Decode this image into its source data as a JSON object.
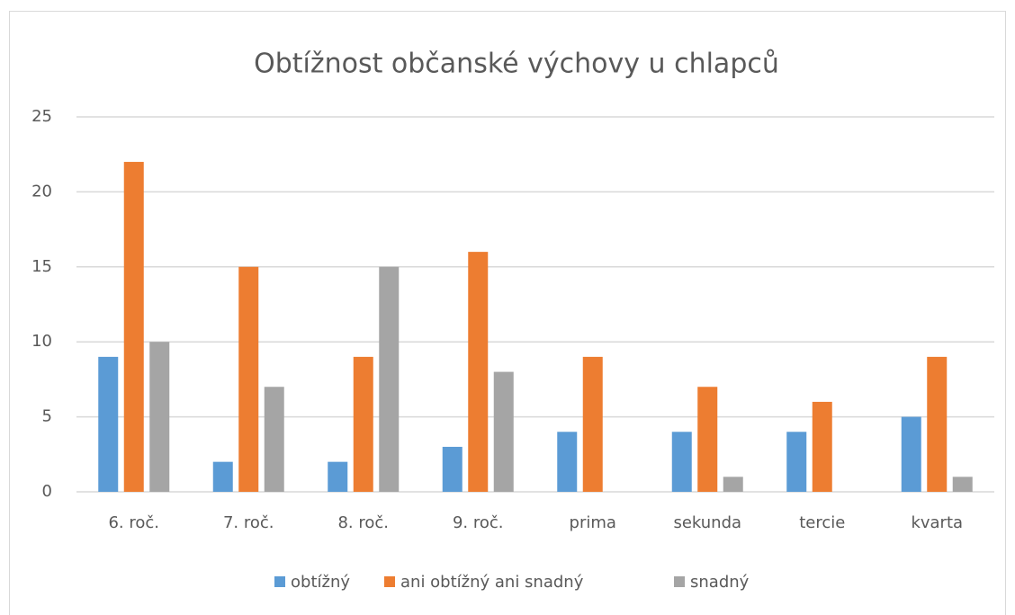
{
  "chart_data": {
    "type": "bar",
    "title": "Obtížnost občanské výchovy u chlapců",
    "categories": [
      "6. roč.",
      "7. roč.",
      "8. roč.",
      "9. roč.",
      "prima",
      "sekunda",
      "tercie",
      "kvarta"
    ],
    "series": [
      {
        "name": "obtížný",
        "color": "#5b9bd5",
        "values": [
          9,
          2,
          2,
          3,
          4,
          4,
          4,
          5
        ]
      },
      {
        "name": "ani obtížný ani snadný",
        "color": "#ed7d31",
        "values": [
          22,
          15,
          9,
          16,
          9,
          7,
          6,
          9
        ]
      },
      {
        "name": "snadný",
        "color": "#a5a5a5",
        "values": [
          10,
          7,
          15,
          8,
          0,
          1,
          0,
          1
        ]
      }
    ],
    "ylim": [
      0,
      25
    ],
    "yticks": [
      0,
      5,
      10,
      15,
      20,
      25
    ],
    "grid": true,
    "legend": "bottom"
  }
}
